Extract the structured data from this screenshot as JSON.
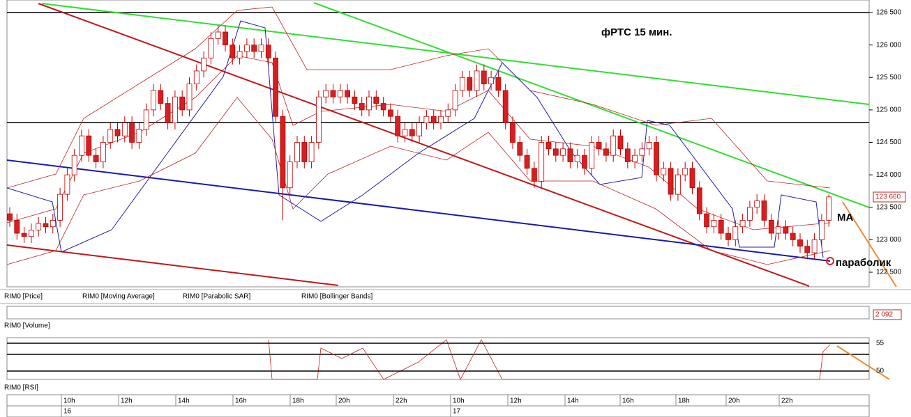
{
  "chart_data": {
    "type": "candlestick",
    "title": "фРТС  15 мин.",
    "annotations": [
      "МА",
      "параболик"
    ],
    "legend": [
      "RIM0 [Price]",
      "RIM0 [Moving Average]",
      "RIM0 [Parabolic SAR]",
      "RIM0 [Bollinger Bands]"
    ],
    "volume_label": "RIM0 [Volume]",
    "rsi_label": "RIM0 [RSI]",
    "last_price": {
      "value": 123660,
      "label": "123 660"
    },
    "last_volume": {
      "value": 2092,
      "label": "2 092"
    },
    "time_labels": [
      "10h",
      "12h",
      "14h",
      "16h",
      "18h",
      "20h",
      "22h",
      "10h",
      "12h",
      "14h",
      "16h",
      "18h",
      "20h",
      "22h"
    ],
    "day_labels": [
      "16",
      "17"
    ],
    "ylim": [
      122275,
      126693
    ],
    "yticks": [
      {
        "value": 126500,
        "label": "126 500"
      },
      {
        "value": 126000,
        "label": "126 000"
      },
      {
        "value": 125500,
        "label": "125 500"
      },
      {
        "value": 125000,
        "label": "125 000"
      },
      {
        "value": 124500,
        "label": "124 500"
      },
      {
        "value": 124000,
        "label": "124 000"
      },
      {
        "value": 123500,
        "label": "123 500"
      },
      {
        "value": 123000,
        "label": "123 000"
      },
      {
        "value": 122500,
        "label": "122 500"
      }
    ],
    "rsi_ylim": [
      48.5,
      56
    ],
    "rsi_yticks": [
      55,
      50
    ],
    "up_color": "#ffffff",
    "down_color": "#d42020",
    "wick_color": "#c00000",
    "open": [
      123400,
      123300,
      123100,
      123050,
      123150,
      123250,
      123200,
      123300,
      123700,
      124000,
      124300,
      124600,
      124300,
      124200,
      124500,
      124700,
      124600,
      124800,
      124500,
      124700,
      125000,
      125300,
      125100,
      124800,
      125200,
      125000,
      125400,
      125600,
      125800,
      126100,
      126200,
      126000,
      125800,
      125900,
      126000,
      125900,
      126000,
      125800,
      124900,
      123800,
      124200,
      124500,
      124200,
      124500,
      125200,
      125300,
      125200,
      125300,
      125200,
      125100,
      125000,
      125200,
      125100,
      125000,
      124900,
      124600,
      124700,
      124600,
      124800,
      124900,
      124800,
      124900,
      125000,
      125300,
      125500,
      125300,
      125600,
      125400,
      125500,
      125300,
      124800,
      124500,
      124300,
      124100,
      123900,
      124500,
      124400,
      124300,
      124400,
      124200,
      124300,
      124100,
      124500,
      124400,
      124300,
      124600,
      124400,
      124200,
      124300,
      124400,
      124500,
      124000,
      124100,
      123700,
      124000,
      124100,
      123800,
      123400,
      123200,
      123300,
      123100,
      123000,
      123200,
      123300,
      123500,
      123600,
      123300,
      123100,
      123200,
      123100,
      123000,
      122900,
      122800,
      123000,
      123300
    ],
    "high": [
      123500,
      123400,
      123200,
      123250,
      123350,
      123350,
      123400,
      123800,
      124100,
      124400,
      124700,
      124700,
      124400,
      124600,
      124800,
      124800,
      124900,
      124900,
      124800,
      125100,
      125400,
      125400,
      125200,
      125300,
      125300,
      125500,
      125700,
      125900,
      126200,
      126300,
      126300,
      126100,
      126000,
      126100,
      126100,
      126100,
      126100,
      125900,
      125000,
      124300,
      124600,
      124600,
      124600,
      125300,
      125400,
      125400,
      125400,
      125400,
      125300,
      125200,
      125300,
      125300,
      125200,
      125100,
      125000,
      124800,
      124800,
      124900,
      125000,
      125000,
      125000,
      125100,
      125400,
      125600,
      125600,
      125700,
      125700,
      125600,
      125600,
      125400,
      124900,
      124600,
      124400,
      124200,
      124600,
      124600,
      124500,
      124500,
      124500,
      124400,
      124400,
      124600,
      124600,
      124500,
      124700,
      124700,
      124500,
      124400,
      124500,
      124600,
      124600,
      124200,
      124200,
      124100,
      124200,
      124200,
      123900,
      123500,
      123400,
      123400,
      123200,
      123300,
      123400,
      123600,
      123700,
      123700,
      123400,
      123300,
      123300,
      123200,
      123100,
      123000,
      123100,
      123400,
      123700
    ],
    "low": [
      123200,
      123000,
      122950,
      122950,
      123050,
      123100,
      123100,
      123200,
      123600,
      123900,
      124200,
      124200,
      124100,
      124100,
      124400,
      124500,
      124500,
      124400,
      124400,
      124600,
      124900,
      125000,
      124700,
      124700,
      124900,
      124900,
      125300,
      125500,
      125700,
      126000,
      125900,
      125700,
      125700,
      125800,
      125800,
      125800,
      125700,
      124800,
      123300,
      123700,
      124100,
      124100,
      124100,
      124400,
      125100,
      125100,
      125100,
      125100,
      125000,
      124900,
      124900,
      125000,
      124900,
      124800,
      124500,
      124500,
      124500,
      124500,
      124700,
      124700,
      124700,
      124800,
      124900,
      125200,
      125200,
      125200,
      125300,
      125300,
      125200,
      124700,
      124400,
      124200,
      124000,
      123800,
      123800,
      124300,
      124200,
      124200,
      124100,
      124100,
      124000,
      124000,
      124300,
      124200,
      124200,
      124300,
      124100,
      124100,
      124200,
      124300,
      123900,
      123900,
      123600,
      123600,
      123900,
      123700,
      123300,
      123100,
      123100,
      123000,
      122900,
      122900,
      123100,
      123200,
      123400,
      123200,
      123000,
      123000,
      123000,
      122900,
      122800,
      122700,
      122700,
      122900,
      123200
    ],
    "close": [
      123300,
      123100,
      123050,
      123150,
      123250,
      123200,
      123300,
      123700,
      124000,
      124300,
      124600,
      124300,
      124200,
      124500,
      124700,
      124600,
      124800,
      124500,
      124700,
      125000,
      125300,
      125100,
      124800,
      125200,
      125000,
      125400,
      125600,
      125800,
      126100,
      126200,
      126000,
      125800,
      125900,
      126000,
      125900,
      126000,
      125800,
      124900,
      123800,
      124200,
      124500,
      124200,
      124500,
      125200,
      125300,
      125200,
      125300,
      125200,
      125100,
      125000,
      125200,
      125100,
      125000,
      124900,
      124600,
      124700,
      124600,
      124800,
      124900,
      124800,
      124900,
      125000,
      125300,
      125500,
      125300,
      125600,
      125400,
      125500,
      125300,
      124800,
      124500,
      124300,
      124100,
      123900,
      124500,
      124400,
      124300,
      124400,
      124200,
      124300,
      124100,
      124500,
      124400,
      124300,
      124600,
      124400,
      124200,
      124300,
      124400,
      124500,
      124000,
      124100,
      123700,
      124000,
      124100,
      123800,
      123400,
      123200,
      123300,
      123100,
      123000,
      123200,
      123300,
      123500,
      123600,
      123300,
      123100,
      123200,
      123100,
      123000,
      122900,
      122800,
      123000,
      123300,
      123660
    ]
  }
}
